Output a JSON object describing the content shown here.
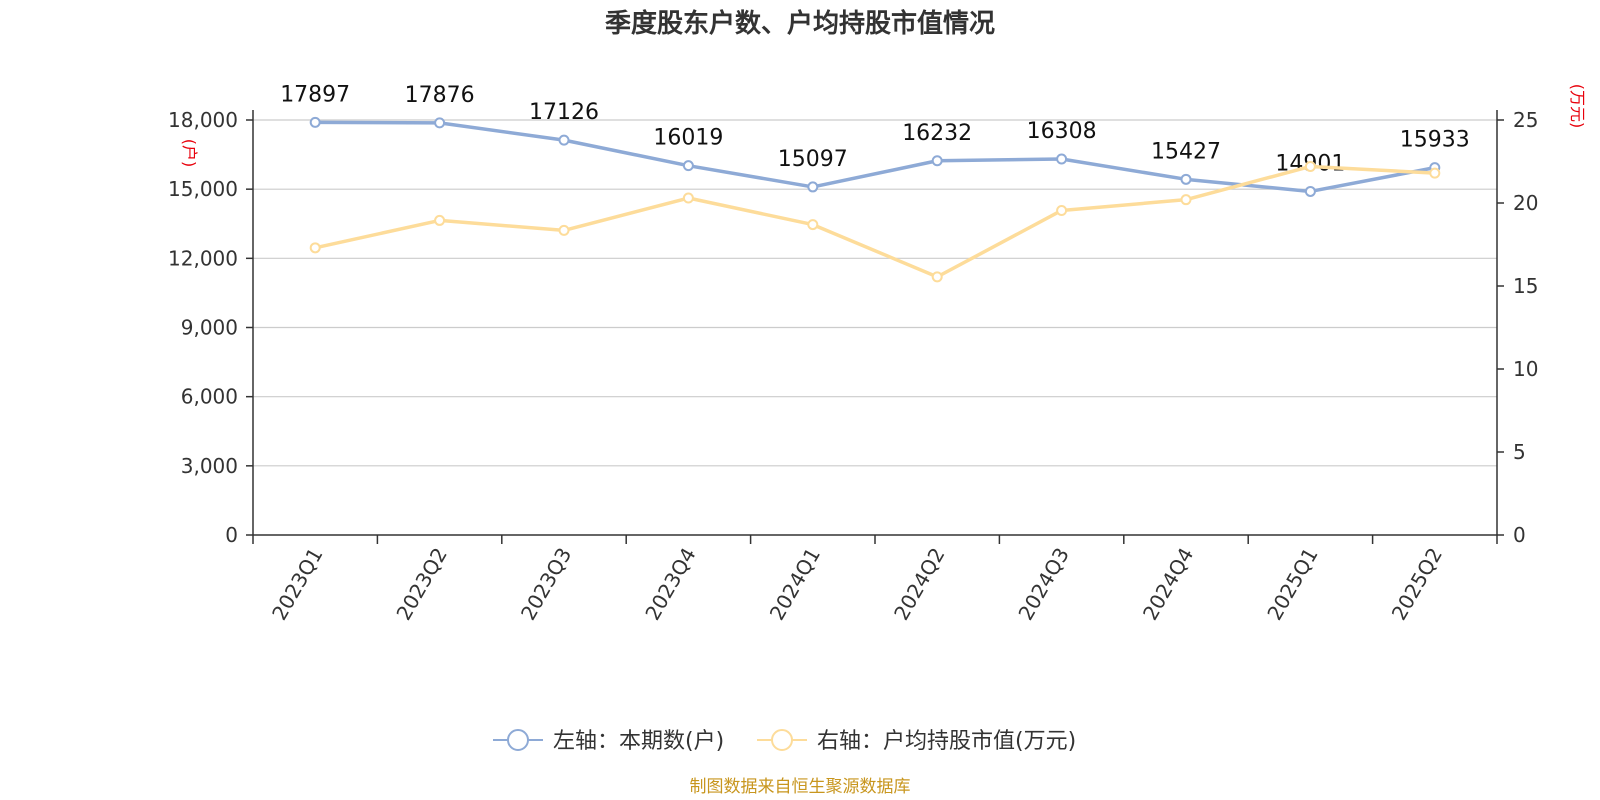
{
  "chart_data": {
    "type": "line",
    "title": "季度股东户数、户均持股市值情况",
    "categories": [
      "2023Q1",
      "2023Q2",
      "2023Q3",
      "2023Q4",
      "2024Q1",
      "2024Q2",
      "2024Q3",
      "2024Q4",
      "2025Q1",
      "2025Q2"
    ],
    "left_axis": {
      "unit": "(户)",
      "ylim": [
        0,
        18000
      ],
      "ticks": [
        "0",
        "3,000",
        "6,000",
        "9,000",
        "12,000",
        "15,000",
        "18,000"
      ]
    },
    "right_axis": {
      "unit": "(万元)",
      "ylim": [
        0,
        25
      ],
      "ticks": [
        "0",
        "5",
        "10",
        "15",
        "20",
        "25"
      ]
    },
    "grid": true,
    "legend_position": "bottom",
    "series": [
      {
        "name": "左轴：本期数(户)",
        "axis": "left",
        "color": "#8eaad6",
        "values": [
          17897,
          17876,
          17126,
          16019,
          15097,
          16232,
          16308,
          15427,
          14901,
          15933
        ],
        "labels": [
          "17897",
          "17876",
          "17126",
          "16019",
          "15097",
          "16232",
          "16308",
          "15427",
          "14901",
          "15933"
        ]
      },
      {
        "name": "右轴：户均持股市值(万元)",
        "axis": "right",
        "color": "#fddc9a",
        "values": [
          17.3,
          18.95,
          18.35,
          20.3,
          18.7,
          15.55,
          19.55,
          20.2,
          22.2,
          21.8
        ]
      }
    ],
    "source": "制图数据来自恒生聚源数据库"
  }
}
